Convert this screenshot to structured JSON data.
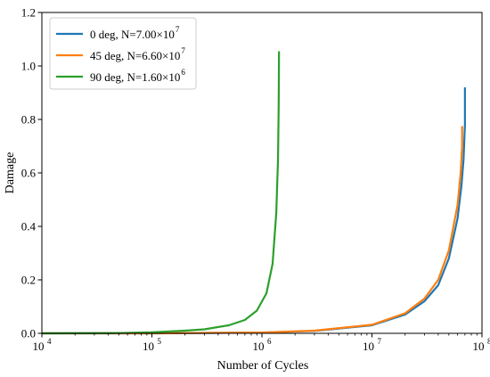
{
  "chart_data": {
    "type": "line",
    "xlabel": "Number of Cycles",
    "ylabel": "Damage",
    "x_scale": "log",
    "xlim": [
      10000,
      100000000
    ],
    "ylim": [
      0,
      1.2
    ],
    "x_ticks": [
      {
        "value": 10000,
        "mantissa": "10",
        "exp": "4"
      },
      {
        "value": 100000,
        "mantissa": "10",
        "exp": "5"
      },
      {
        "value": 1000000,
        "mantissa": "10",
        "exp": "6"
      },
      {
        "value": 10000000,
        "mantissa": "10",
        "exp": "7"
      },
      {
        "value": 100000000,
        "mantissa": "10",
        "exp": "8"
      }
    ],
    "y_ticks": [
      {
        "value": 0.0,
        "label": "0.0"
      },
      {
        "value": 0.2,
        "label": "0.2"
      },
      {
        "value": 0.4,
        "label": "0.4"
      },
      {
        "value": 0.6,
        "label": "0.6"
      },
      {
        "value": 0.8,
        "label": "0.8"
      },
      {
        "value": 1.0,
        "label": "1.0"
      },
      {
        "value": 1.2,
        "label": "1.2"
      }
    ],
    "grid": false,
    "legend_position": "top-left",
    "series": [
      {
        "name": "0 deg, N=7.00×10",
        "name_exp": "7",
        "color": "#1f77b4",
        "points": [
          [
            10000,
            0
          ],
          [
            100000,
            0.0001
          ],
          [
            1000000,
            0.003
          ],
          [
            3000000,
            0.009
          ],
          [
            10000000,
            0.03
          ],
          [
            20000000,
            0.07
          ],
          [
            30000000,
            0.12
          ],
          [
            40000000,
            0.18
          ],
          [
            50000000,
            0.28
          ],
          [
            60000000,
            0.43
          ],
          [
            65000000,
            0.55
          ],
          [
            68000000,
            0.65
          ],
          [
            70000000,
            0.78
          ],
          [
            70000000,
            0.92
          ]
        ]
      },
      {
        "name": "45 deg, N=6.60×10",
        "name_exp": "7",
        "color": "#ff7f0e",
        "points": [
          [
            10000,
            0
          ],
          [
            100000,
            0.0001
          ],
          [
            1000000,
            0.003
          ],
          [
            3000000,
            0.01
          ],
          [
            10000000,
            0.032
          ],
          [
            20000000,
            0.075
          ],
          [
            30000000,
            0.13
          ],
          [
            40000000,
            0.2
          ],
          [
            50000000,
            0.31
          ],
          [
            60000000,
            0.48
          ],
          [
            64000000,
            0.6
          ],
          [
            66000000,
            0.7
          ],
          [
            66000000,
            0.775
          ]
        ]
      },
      {
        "name": "90 deg, N=1.60×10",
        "name_exp": "6",
        "color": "#2ca02c",
        "points": [
          [
            10000,
            0
          ],
          [
            50000,
            0.001
          ],
          [
            100000,
            0.004
          ],
          [
            200000,
            0.01
          ],
          [
            300000,
            0.015
          ],
          [
            500000,
            0.03
          ],
          [
            700000,
            0.05
          ],
          [
            900000,
            0.085
          ],
          [
            1100000,
            0.15
          ],
          [
            1250000,
            0.26
          ],
          [
            1350000,
            0.45
          ],
          [
            1400000,
            0.65
          ],
          [
            1420000,
            0.85
          ],
          [
            1430000,
            1.055
          ]
        ]
      }
    ]
  }
}
